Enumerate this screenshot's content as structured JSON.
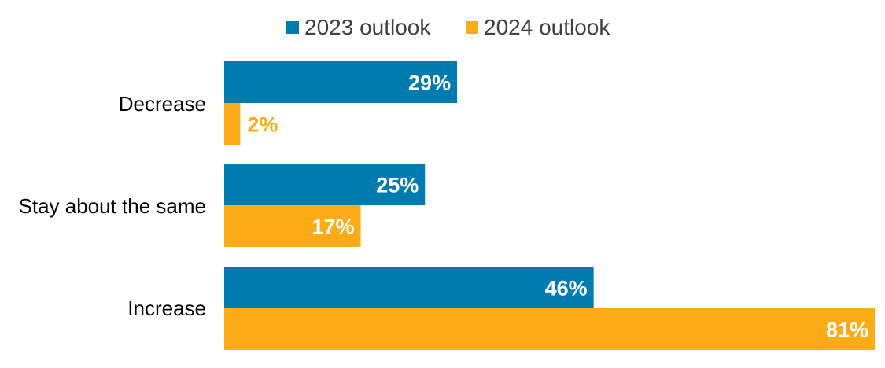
{
  "chart_data": {
    "type": "bar",
    "orientation": "horizontal",
    "title": "",
    "xlabel": "",
    "ylabel": "",
    "categories": [
      "Decrease",
      "Stay about the same",
      "Increase"
    ],
    "series": [
      {
        "name": "2023 outlook",
        "color": "#007BB0",
        "values": [
          29,
          25,
          46
        ],
        "labels": [
          "29%",
          "25%",
          "46%"
        ]
      },
      {
        "name": "2024 outlook",
        "color": "#FCAC16",
        "values": [
          2,
          17,
          81
        ],
        "labels": [
          "2%",
          "17%",
          "81%"
        ]
      }
    ],
    "xlim": [
      0,
      81
    ],
    "grid": false,
    "legend_position": "top"
  }
}
